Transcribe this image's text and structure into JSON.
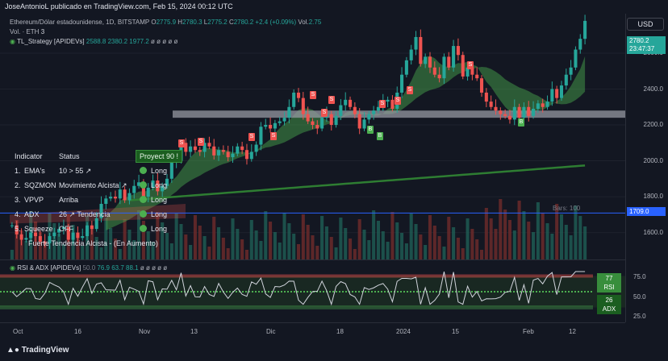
{
  "publish_info": "JoseAntonioL publicado en TradingView.com, Feb 15, 2024 00:12 UTC",
  "symbol": {
    "title": "Ethereum/Dólar estadounidense, 1D, BITSTAMP",
    "o_label": "O",
    "o": "2775.9",
    "h_label": "H",
    "h": "2780.3",
    "l_label": "L",
    "l": "2775.2",
    "c_label": "C",
    "c": "2780.2",
    "change": "+2.4 (+0.09%)",
    "vol_label": "Vol.",
    "vol": "2.75"
  },
  "volume_line": {
    "label": "Vol. · ETH",
    "value": "3"
  },
  "strategy_line": {
    "name": "TL_Strategy [APIDEVs]",
    "v1": "2588.8",
    "v2": "2380.2",
    "v3": "1977.2",
    "rest": "ø ø ø ø ø"
  },
  "currency": "USD",
  "last_price": {
    "value": "2780.2",
    "countdown": "23:47:37"
  },
  "hline_value": "1709.0",
  "price_labels": [
    "2600.0",
    "2400.0",
    "2200.0",
    "2000.0",
    "1800.0",
    "1600.0"
  ],
  "time_labels": [
    "Oct",
    "16",
    "Nov",
    "13",
    "Dic",
    "18",
    "2024",
    "15",
    "Feb",
    "12"
  ],
  "status_table": {
    "header_indicator": "Indicator",
    "header_status": "Status",
    "rows": [
      {
        "n": "1.",
        "ind": "EMA's",
        "status": "10 > 55 ↗",
        "signal": "Long"
      },
      {
        "n": "2.",
        "ind": "SQZMON",
        "status": "Movimiento Alcista ↗",
        "signal": "Long"
      },
      {
        "n": "3.",
        "ind": "VPVP",
        "status": "Arriba",
        "signal": "Long"
      },
      {
        "n": "4.",
        "ind": "ADX",
        "status": "26 ↗ Tendencia",
        "signal": "Long"
      },
      {
        "n": "5.",
        "ind": "Squeeze",
        "status": "OFF",
        "signal": "Long"
      }
    ],
    "footer": "Fuerte Tendencia Alcista - (En Aumento)"
  },
  "proyect_label": "Proyect 90 !",
  "bars_label": "Bars: 100",
  "signals": [
    {
      "t": "S",
      "x": 225,
      "y": 178
    },
    {
      "t": "S",
      "x": 249,
      "y": 176
    },
    {
      "t": "S",
      "x": 312,
      "y": 170
    },
    {
      "t": "S",
      "x": 339,
      "y": 169
    },
    {
      "t": "S",
      "x": 388,
      "y": 118
    },
    {
      "t": "S",
      "x": 402,
      "y": 140
    },
    {
      "t": "S",
      "x": 411,
      "y": 124
    },
    {
      "t": "S",
      "x": 474,
      "y": 129
    },
    {
      "t": "S",
      "x": 493,
      "y": 125
    },
    {
      "t": "S",
      "x": 508,
      "y": 112
    },
    {
      "t": "S",
      "x": 583,
      "y": 81
    },
    {
      "t": "B",
      "x": 459,
      "y": 161
    },
    {
      "t": "B",
      "x": 471,
      "y": 169
    },
    {
      "t": "B",
      "x": 646,
      "y": 152
    }
  ],
  "rsi_pane": {
    "title": "RSI & ADX [APIDEVs]",
    "v0": "50.0",
    "v1": "76.9",
    "v2": "63.7",
    "v3": "88.1",
    "rest": "ø ø ø ø ø",
    "rsi_value": "77",
    "rsi_label": "RSI",
    "adx_value": "26",
    "adx_label": "ADX",
    "axis_labels": [
      "75.0",
      "50.0",
      "25.0"
    ]
  },
  "footer_logo": "TradingView",
  "colors": {
    "bg": "#131722",
    "up": "#26a69a",
    "down": "#ef5350",
    "hline": "#2962ff",
    "band": "#4caf50"
  },
  "chart_data": {
    "type": "candlestick",
    "title": "Ethereum/Dólar estadounidense, 1D, BITSTAMP",
    "x": [
      "Oct",
      "16",
      "Nov",
      "13",
      "Dic",
      "18",
      "2024",
      "15",
      "Feb",
      "12"
    ],
    "ylim": [
      1450,
      2820
    ],
    "closes": [
      1640,
      1590,
      1560,
      1570,
      1600,
      1580,
      1550,
      1540,
      1580,
      1600,
      1620,
      1630,
      1560,
      1600,
      1570,
      1580,
      1640,
      1620,
      1680,
      1760,
      1790,
      1800,
      1790,
      1840,
      1780,
      1820,
      1860,
      1880,
      1800,
      1850,
      1890,
      1830,
      1860,
      1900,
      1990,
      2000,
      2100,
      2050,
      2080,
      2060,
      2050,
      2100,
      2080,
      2030,
      2060,
      2050,
      2020,
      2040,
      2080,
      2060,
      2010,
      2050,
      2090,
      2190,
      2200,
      2180,
      2210,
      2220,
      2240,
      2300,
      2380,
      2350,
      2260,
      2220,
      2200,
      2180,
      2240,
      2260,
      2200,
      2250,
      2310,
      2340,
      2300,
      2260,
      2180,
      2230,
      2260,
      2280,
      2300,
      2330,
      2340,
      2290,
      2380,
      2480,
      2560,
      2620,
      2690,
      2540,
      2580,
      2520,
      2480,
      2460,
      2580,
      2520,
      2640,
      2590,
      2470,
      2520,
      2480,
      2460,
      2380,
      2330,
      2300,
      2280,
      2260,
      2250,
      2230,
      2300,
      2240,
      2300,
      2250,
      2290,
      2320,
      2300,
      2330,
      2400,
      2350,
      2420,
      2480,
      2520,
      2620,
      2680,
      2780
    ],
    "resistance_band": [
      2240,
      2280
    ],
    "hline": 1709.0,
    "strategy_values": [
      2588.8,
      2380.2,
      1977.2
    ],
    "rsi_ylim": [
      0,
      100
    ],
    "rsi_value": 76.9,
    "adx_value": 26
  }
}
